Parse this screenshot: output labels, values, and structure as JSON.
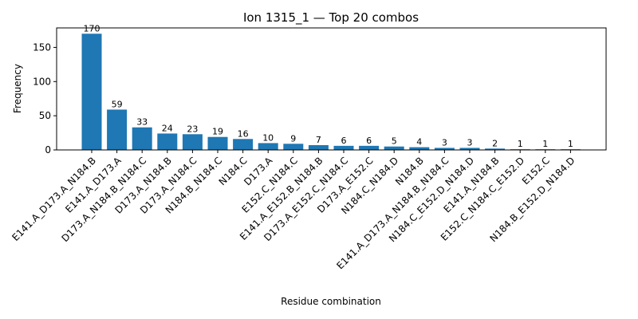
{
  "chart_data": {
    "type": "bar",
    "title": "Ion 1315_1 — Top 20 combos",
    "xlabel": "Residue combination",
    "ylabel": "Frequency",
    "categories": [
      "E141.A_D173.A_N184.B",
      "E141.A_D173.A",
      "D173.A_N184.B_N184.C",
      "D173.A_N184.B",
      "D173.A_N184.C",
      "N184.B_N184.C",
      "N184.C",
      "D173.A",
      "E152.C_N184.C",
      "E141.A_E152.B_N184.B",
      "D173.A_E152.C_N184.C",
      "D173.A_E152.C",
      "N184.C_N184.D",
      "N184.B",
      "E141.A_D173.A_N184.B_N184.C",
      "N184.C_E152.D_N184.D",
      "E141.A_N184.B",
      "E152.C_N184.C_E152.D",
      "E152.C",
      "N184.B_E152.D_N184.D"
    ],
    "values": [
      170,
      59,
      33,
      24,
      23,
      19,
      16,
      10,
      9,
      7,
      6,
      6,
      5,
      4,
      3,
      3,
      2,
      1,
      1,
      1
    ],
    "yticks": [
      0,
      50,
      100,
      150
    ],
    "ylim": [
      0,
      178.5
    ],
    "bar_color": "#1f77b4",
    "grid": false,
    "legend": "none"
  }
}
